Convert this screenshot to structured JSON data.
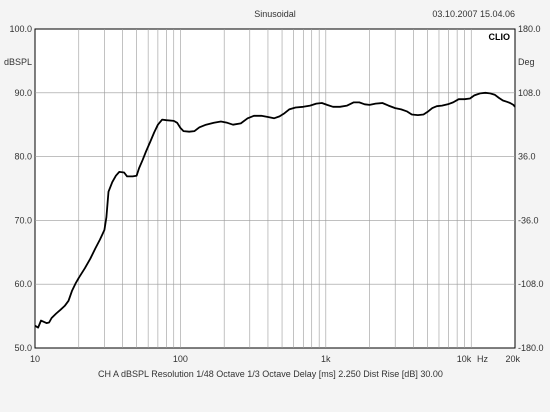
{
  "header": {
    "title": "Sinusoidal",
    "timestamp": "03.10.2007 15.04.06",
    "brand": "CLIO"
  },
  "axes": {
    "left_unit": "dBSPL",
    "right_unit": "Deg",
    "x_unit": "Hz"
  },
  "footer": {
    "text": "CH A   dBSPL   Resolution 1/48 Octave   1/3 Octave   Delay [ms] 2.250   Dist Rise [dB] 30.00"
  },
  "colors": {
    "background": "#f4f4f4",
    "grid": "#9a9a9a",
    "trace": "#000000"
  },
  "chart_data": {
    "type": "line",
    "title": "Sinusoidal",
    "x_scale": "log",
    "xlim": [
      10,
      20000
    ],
    "ylim": [
      50,
      100
    ],
    "y2lim": [
      -180,
      180
    ],
    "grid": true,
    "x_ticks": [
      {
        "value": 10,
        "label": "10"
      },
      {
        "value": 100,
        "label": "100"
      },
      {
        "value": 1000,
        "label": "1k"
      },
      {
        "value": 10000,
        "label": "10k"
      },
      {
        "value": 20000,
        "label": "20k"
      }
    ],
    "y_ticks": [
      {
        "value": 50,
        "label": "50.0"
      },
      {
        "value": 60,
        "label": "60.0"
      },
      {
        "value": 70,
        "label": "70.0"
      },
      {
        "value": 80,
        "label": "80.0"
      },
      {
        "value": 90,
        "label": "90.0"
      },
      {
        "value": 100,
        "label": "100.0"
      }
    ],
    "y2_ticks": [
      {
        "value": -180,
        "label": "-180.0"
      },
      {
        "value": -108,
        "label": "-108.0"
      },
      {
        "value": -36,
        "label": "-36.0"
      },
      {
        "value": 36,
        "label": "36.0"
      },
      {
        "value": 108,
        "label": "108.0"
      },
      {
        "value": 180,
        "label": "180.0"
      }
    ],
    "series": [
      {
        "points": [
          [
            10,
            53.5
          ],
          [
            10.5,
            53.2
          ],
          [
            11,
            54.3
          ],
          [
            12,
            53.9
          ],
          [
            12.5,
            54.0
          ],
          [
            13,
            54.7
          ],
          [
            14,
            55.4
          ],
          [
            15,
            56.0
          ],
          [
            16,
            56.6
          ],
          [
            17,
            57.4
          ],
          [
            18,
            59.0
          ],
          [
            19,
            60.1
          ],
          [
            20,
            61.0
          ],
          [
            22,
            62.5
          ],
          [
            24,
            64.0
          ],
          [
            26,
            65.6
          ],
          [
            28,
            67.0
          ],
          [
            30,
            68.5
          ],
          [
            31,
            70.5
          ],
          [
            32,
            74.5
          ],
          [
            34,
            76.0
          ],
          [
            36,
            77.0
          ],
          [
            38,
            77.6
          ],
          [
            41,
            77.5
          ],
          [
            43,
            76.9
          ],
          [
            47,
            76.9
          ],
          [
            50,
            77.0
          ],
          [
            52,
            78.2
          ],
          [
            55,
            79.5
          ],
          [
            58,
            80.8
          ],
          [
            62,
            82.3
          ],
          [
            66,
            83.8
          ],
          [
            70,
            85.0
          ],
          [
            75,
            85.8
          ],
          [
            80,
            85.7
          ],
          [
            90,
            85.6
          ],
          [
            95,
            85.3
          ],
          [
            100,
            84.5
          ],
          [
            105,
            84.0
          ],
          [
            115,
            83.9
          ],
          [
            125,
            84.0
          ],
          [
            135,
            84.6
          ],
          [
            150,
            85.0
          ],
          [
            170,
            85.3
          ],
          [
            190,
            85.5
          ],
          [
            210,
            85.3
          ],
          [
            230,
            85.0
          ],
          [
            260,
            85.2
          ],
          [
            290,
            86.0
          ],
          [
            320,
            86.4
          ],
          [
            360,
            86.4
          ],
          [
            400,
            86.2
          ],
          [
            440,
            86.0
          ],
          [
            480,
            86.3
          ],
          [
            520,
            86.8
          ],
          [
            560,
            87.4
          ],
          [
            620,
            87.7
          ],
          [
            700,
            87.8
          ],
          [
            780,
            88.0
          ],
          [
            860,
            88.3
          ],
          [
            940,
            88.4
          ],
          [
            1020,
            88.1
          ],
          [
            1120,
            87.8
          ],
          [
            1250,
            87.8
          ],
          [
            1400,
            88.0
          ],
          [
            1550,
            88.5
          ],
          [
            1700,
            88.5
          ],
          [
            1850,
            88.2
          ],
          [
            2000,
            88.1
          ],
          [
            2200,
            88.3
          ],
          [
            2450,
            88.4
          ],
          [
            2700,
            88.0
          ],
          [
            3000,
            87.6
          ],
          [
            3300,
            87.4
          ],
          [
            3600,
            87.1
          ],
          [
            3900,
            86.6
          ],
          [
            4300,
            86.5
          ],
          [
            4700,
            86.6
          ],
          [
            5000,
            87.0
          ],
          [
            5400,
            87.6
          ],
          [
            5800,
            87.9
          ],
          [
            6300,
            88.0
          ],
          [
            6900,
            88.2
          ],
          [
            7500,
            88.5
          ],
          [
            8200,
            89.0
          ],
          [
            9000,
            89.0
          ],
          [
            9800,
            89.1
          ],
          [
            10500,
            89.6
          ],
          [
            11500,
            89.9
          ],
          [
            12500,
            90.0
          ],
          [
            13500,
            89.9
          ],
          [
            14500,
            89.7
          ],
          [
            15500,
            89.2
          ],
          [
            16500,
            88.8
          ],
          [
            17500,
            88.6
          ],
          [
            18500,
            88.4
          ],
          [
            19500,
            88.1
          ],
          [
            20000,
            87.8
          ]
        ]
      }
    ]
  }
}
